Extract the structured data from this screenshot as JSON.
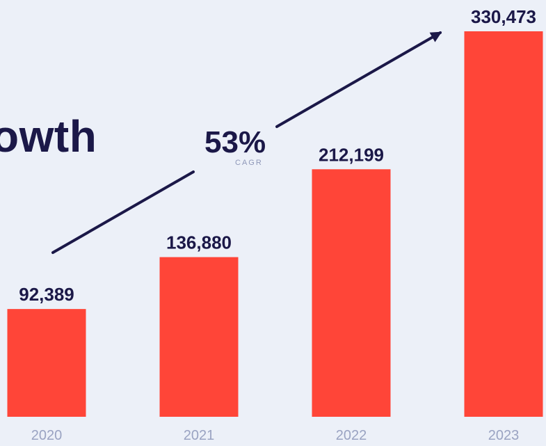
{
  "chart_data": {
    "type": "bar",
    "categories": [
      "2020",
      "2021",
      "2022",
      "2023"
    ],
    "values": [
      92389,
      136880,
      212199,
      330473
    ],
    "value_labels": [
      "92,389",
      "136,880",
      "212,199",
      "330,473"
    ],
    "title": "owth",
    "annotation": {
      "value": "53%",
      "label": "CAGR"
    },
    "ylim": [
      0,
      330473
    ],
    "grid": false,
    "legend": "none"
  },
  "colors": {
    "background": "#ecf0f8",
    "bar": "#ff4538",
    "text": "#1b1848",
    "muted": "#9aa3c2"
  }
}
